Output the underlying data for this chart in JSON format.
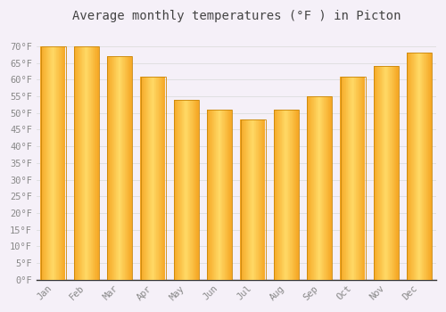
{
  "title": "Average monthly temperatures (°F ) in Picton",
  "months": [
    "Jan",
    "Feb",
    "Mar",
    "Apr",
    "May",
    "Jun",
    "Jul",
    "Aug",
    "Sep",
    "Oct",
    "Nov",
    "Dec"
  ],
  "values": [
    70,
    70,
    67,
    61,
    54,
    51,
    48,
    51,
    55,
    61,
    64,
    68
  ],
  "bar_color_center": "#FFD966",
  "bar_color_edge": "#F5A623",
  "bar_outline_color": "#C8860A",
  "background_color": "#F5F0F8",
  "plot_bg_color": "#F5F0F8",
  "grid_color": "#DDDDDD",
  "title_color": "#444444",
  "tick_color": "#888888",
  "spine_color": "#333333",
  "ylim": [
    0,
    75
  ],
  "yticks": [
    0,
    5,
    10,
    15,
    20,
    25,
    30,
    35,
    40,
    45,
    50,
    55,
    60,
    65,
    70
  ],
  "ytick_labels": [
    "0°F",
    "5°F",
    "10°F",
    "15°F",
    "20°F",
    "25°F",
    "30°F",
    "35°F",
    "40°F",
    "45°F",
    "50°F",
    "55°F",
    "60°F",
    "65°F",
    "70°F"
  ],
  "title_fontsize": 10,
  "tick_fontsize": 7.5,
  "bar_width": 0.75
}
